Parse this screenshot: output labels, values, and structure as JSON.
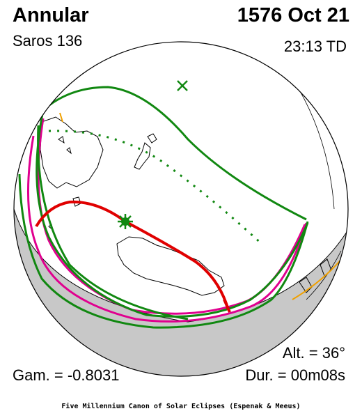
{
  "header": {
    "eclipse_type": "Annular",
    "saros": "Saros 136",
    "date": "1576 Oct 21",
    "time": "23:13 TD"
  },
  "stats": {
    "gamma": "Gam. = -0.8031",
    "altitude": "Alt. = 36°",
    "duration": "Dur. = 00m08s"
  },
  "footer": {
    "credit": "Five Millennium Canon of Solar Eclipses (Espenak & Meeus)"
  },
  "colors": {
    "central_path": "#e00000",
    "penumbral_limits": "#e0008f",
    "path_limits": "#118811",
    "night_shade": "#c8c8c8",
    "secondary_limit": "#f0a000"
  },
  "markers": {
    "greatest_eclipse": "star-icon",
    "subsolar_point": "cross-icon"
  }
}
